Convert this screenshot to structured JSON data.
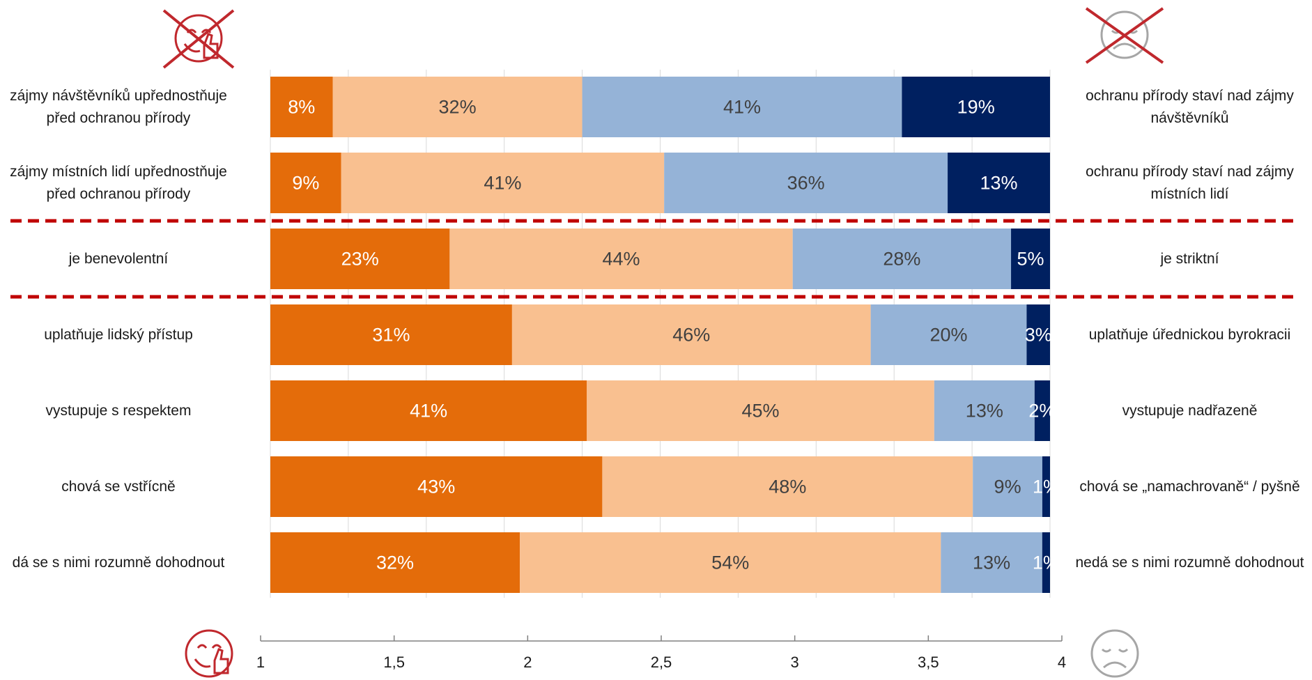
{
  "chart_data": {
    "type": "bar",
    "stacked": true,
    "orientation": "horizontal",
    "rows": [
      {
        "left": "zájmy návštěvníků upřednostňuje před ochranou přírody",
        "right": "ochranu přírody staví nad zájmy návštěvníků",
        "values": [
          8,
          32,
          41,
          19
        ]
      },
      {
        "left": "zájmy místních lidí upřednostňuje před ochranou přírody",
        "right": "ochranu přírody staví nad zájmy místních lidí",
        "values": [
          9,
          41,
          36,
          13
        ]
      },
      {
        "left": "je benevolentní",
        "right": "je striktní",
        "values": [
          23,
          44,
          28,
          5
        ]
      },
      {
        "left": "uplatňuje lidský přístup",
        "right": "uplatňuje úřednickou byrokracii",
        "values": [
          31,
          46,
          20,
          3
        ]
      },
      {
        "left": "vystupuje s respektem",
        "right": "vystupuje nadřazeně",
        "values": [
          41,
          45,
          13,
          2
        ]
      },
      {
        "left": "chová se vstřícně",
        "right": "chová se „namachrovaně“ / pyšně",
        "values": [
          43,
          48,
          9,
          1
        ]
      },
      {
        "left": "dá se s nimi rozumně dohodnout",
        "right": "nedá se s nimi rozumně dohodnout",
        "values": [
          32,
          54,
          13,
          1
        ]
      }
    ],
    "segment_colors": [
      "#E46C0A",
      "#F9C090",
      "#95B3D7",
      "#002060"
    ],
    "label_colors": [
      "#ffffff",
      "#404040",
      "#404040",
      "#ffffff"
    ],
    "axis": {
      "ticks": [
        "1",
        "1,5",
        "2",
        "2,5",
        "3",
        "3,5",
        "4"
      ],
      "min": 1,
      "max": 4
    },
    "separator_color": "#C00000",
    "separators_after_rows": [
      1,
      2
    ]
  },
  "icons": {
    "top_left": "crossed-out-thumbs-up-smiley-icon",
    "top_right": "crossed-out-sad-face-icon",
    "bottom_left": "thumbs-up-smiley-icon",
    "bottom_right": "sad-face-icon",
    "positive_color": "#C0282D",
    "negative_color": "#A6A6A6"
  }
}
